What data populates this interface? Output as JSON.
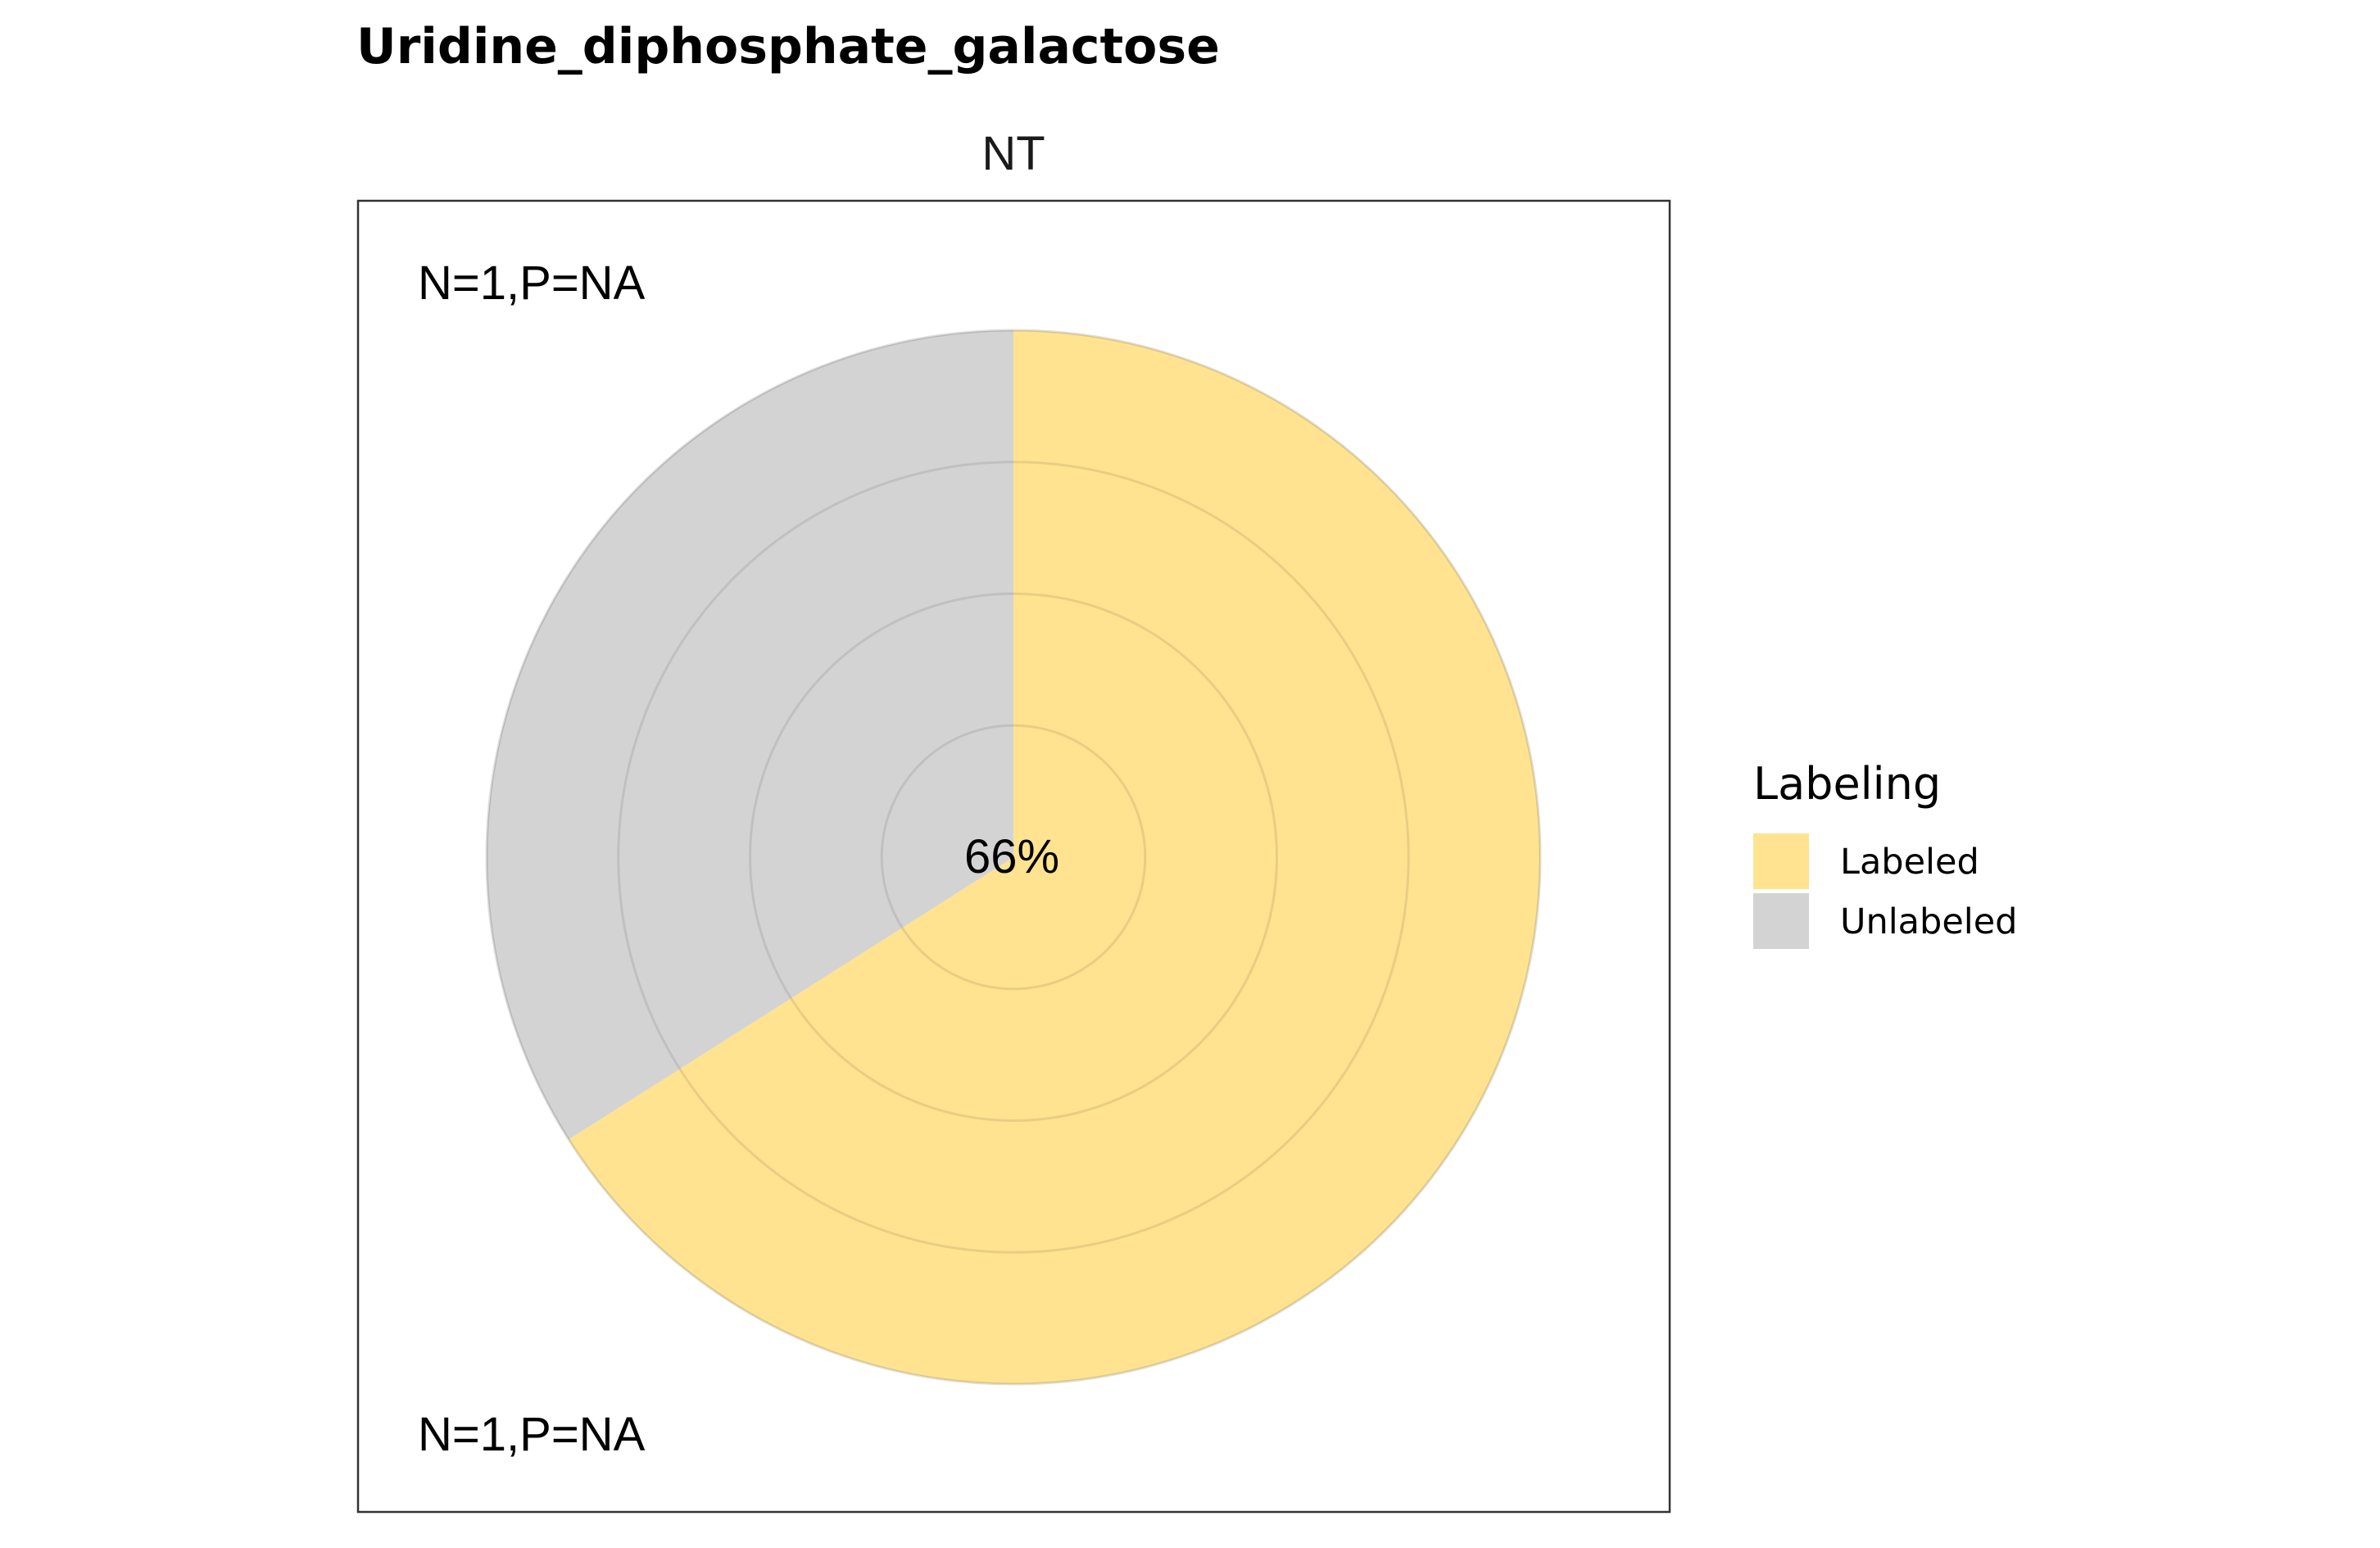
{
  "chart_data": {
    "type": "pie",
    "title": "Uridine_diphosphate_galactose",
    "facet_label": "NT",
    "annotations": {
      "top": "N=1,P=NA",
      "bottom": "N=1,P=NA"
    },
    "center_label": "66%",
    "slices": [
      {
        "name": "Labeled",
        "value": 66,
        "color": "#FFE391"
      },
      {
        "name": "Unlabeled",
        "value": 34,
        "color": "#D3D3D3"
      }
    ],
    "radial_grid_rings": 4,
    "legend": {
      "title": "Labeling",
      "placement": "right",
      "items": [
        {
          "label": "Labeled",
          "color": "#FFE391"
        },
        {
          "label": "Unlabeled",
          "color": "#D3D3D3"
        }
      ]
    }
  }
}
